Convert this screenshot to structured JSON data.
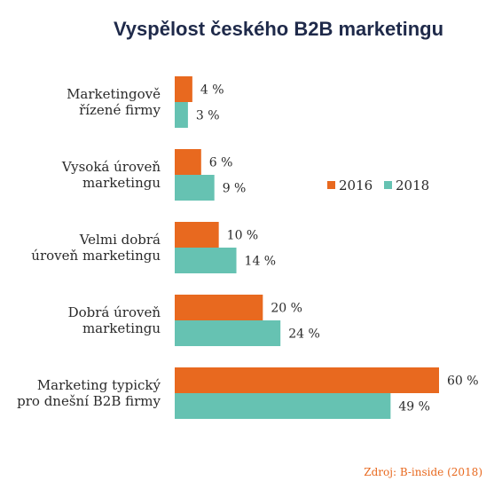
{
  "chart_data": {
    "type": "bar",
    "orientation": "horizontal",
    "title": "Vyspělost českého B2B marketingu",
    "categories": [
      [
        "Marketingově",
        "řízené firmy"
      ],
      [
        "Vysoká úroveň",
        "marketingu"
      ],
      [
        "Velmi dobrá",
        "úroveň marketingu"
      ],
      [
        "Dobrá úroveň",
        "marketingu"
      ],
      [
        "Marketing typický",
        "pro dnešní B2B firmy"
      ]
    ],
    "series": [
      {
        "name": "2016",
        "color": "#e8691f",
        "values": [
          4,
          6,
          10,
          20,
          60
        ],
        "labels": [
          "4 %",
          "6 %",
          "10 %",
          "20 %",
          "60 %"
        ]
      },
      {
        "name": "2018",
        "color": "#66c2b2",
        "values": [
          3,
          9,
          14,
          24,
          49
        ],
        "labels": [
          "3 %",
          "9 %",
          "14 %",
          "24 %",
          "49 %"
        ]
      }
    ],
    "xlim": [
      0,
      60
    ],
    "grid": false,
    "legend_position": "right",
    "source": "Zdroj: B-inside (2018)",
    "source_color": "#e8691f"
  }
}
